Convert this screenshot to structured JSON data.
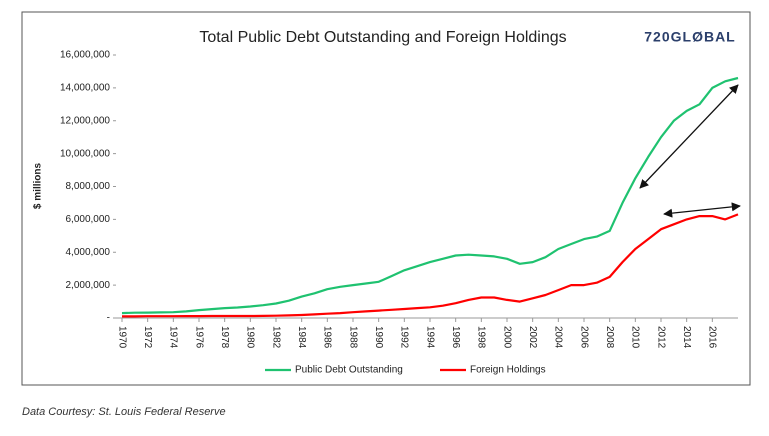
{
  "chart_data": {
    "type": "line",
    "title": "Total Public Debt Outstanding and Foreign Holdings",
    "logo": "720GLØBAL",
    "ylabel": "$ millions",
    "source": "Data Courtesy: St. Louis Federal Reserve",
    "x": [
      1970,
      1971,
      1972,
      1973,
      1974,
      1975,
      1976,
      1977,
      1978,
      1979,
      1980,
      1981,
      1982,
      1983,
      1984,
      1985,
      1986,
      1987,
      1988,
      1989,
      1990,
      1991,
      1992,
      1993,
      1994,
      1995,
      1996,
      1997,
      1998,
      1999,
      2000,
      2001,
      2002,
      2003,
      2004,
      2005,
      2006,
      2007,
      2008,
      2009,
      2010,
      2011,
      2012,
      2013,
      2014,
      2015,
      2016,
      2017,
      2018
    ],
    "series": [
      {
        "name": "Public Debt Outstanding",
        "color": "#1fc270",
        "values": [
          300000,
          320000,
          330000,
          340000,
          350000,
          400000,
          480000,
          540000,
          600000,
          640000,
          700000,
          780000,
          880000,
          1050000,
          1300000,
          1500000,
          1750000,
          1900000,
          2000000,
          2100000,
          2200000,
          2550000,
          2900000,
          3150000,
          3400000,
          3600000,
          3800000,
          3850000,
          3800000,
          3750000,
          3600000,
          3300000,
          3400000,
          3700000,
          4200000,
          4500000,
          4800000,
          4950000,
          5300000,
          7000000,
          8500000,
          9800000,
          11000000,
          12000000,
          12600000,
          13000000,
          14000000,
          14400000,
          14600000
        ]
      },
      {
        "name": "Foreign Holdings",
        "color": "#ff0000",
        "values": [
          100000,
          100000,
          110000,
          110000,
          110000,
          115000,
          115000,
          120000,
          120000,
          120000,
          120000,
          130000,
          140000,
          160000,
          180000,
          220000,
          260000,
          300000,
          350000,
          400000,
          450000,
          500000,
          550000,
          600000,
          650000,
          750000,
          900000,
          1100000,
          1250000,
          1250000,
          1100000,
          1000000,
          1200000,
          1400000,
          1700000,
          2000000,
          2000000,
          2150000,
          2500000,
          3400000,
          4200000,
          4800000,
          5400000,
          5700000,
          6000000,
          6200000,
          6200000,
          6000000,
          6300000
        ]
      }
    ],
    "xlim": [
      1970,
      2018
    ],
    "xticks": [
      1970,
      1972,
      1974,
      1976,
      1978,
      1980,
      1982,
      1984,
      1986,
      1988,
      1990,
      1992,
      1994,
      1996,
      1998,
      2000,
      2002,
      2004,
      2006,
      2008,
      2010,
      2012,
      2014,
      2016
    ],
    "ylim": [
      0,
      16000000
    ],
    "yticks": [
      {
        "value": 0,
        "label": "-"
      },
      {
        "value": 2000000,
        "label": "2,000,000"
      },
      {
        "value": 4000000,
        "label": "4,000,000"
      },
      {
        "value": 6000000,
        "label": "6,000,000"
      },
      {
        "value": 8000000,
        "label": "8,000,000"
      },
      {
        "value": 10000000,
        "label": "10,000,000"
      },
      {
        "value": 12000000,
        "label": "12,000,000"
      },
      {
        "value": 14000000,
        "label": "14,000,000"
      },
      {
        "value": 16000000,
        "label": "16,000,000"
      }
    ],
    "grid": false
  }
}
